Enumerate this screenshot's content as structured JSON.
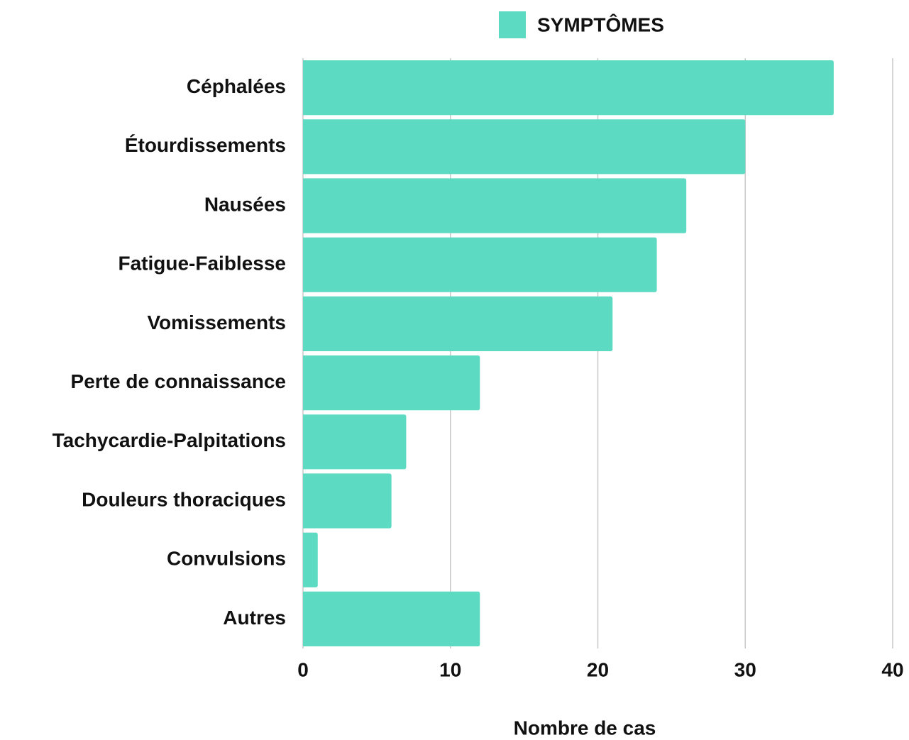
{
  "chart_data": {
    "type": "bar",
    "orientation": "horizontal",
    "x_label": "Nombre de cas",
    "categories": [
      "Céphalées",
      "Étourdissements",
      "Nausées",
      "Fatigue-Faiblesse",
      "Vomissements",
      "Perte de connaissance",
      "Tachycardie-Palpitations",
      "Douleurs thoraciques",
      "Convulsions",
      "Autres"
    ],
    "series": [
      {
        "name": "SYMPTÔMES",
        "color": "#5cdbc2",
        "values": [
          36,
          30,
          26,
          24,
          21,
          12,
          7,
          6,
          1,
          12
        ]
      }
    ],
    "xlim": [
      0,
      40
    ],
    "xticks": [
      0,
      10,
      20,
      30,
      40
    ],
    "grid": true,
    "legend": "top"
  }
}
